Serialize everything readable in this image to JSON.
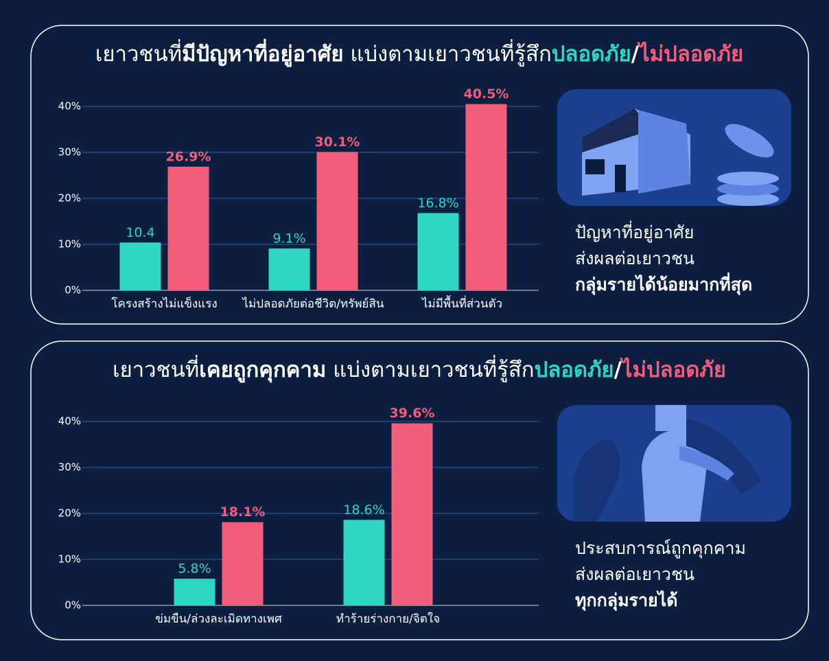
{
  "chart_data": [
    {
      "type": "bar",
      "title_parts": [
        "เยาวชนที่",
        "มีปัญหาที่อยู่อาศัย",
        " แบ่งตามเยาวชนที่รู้สึก",
        "/"
      ],
      "categories": [
        "โครงสร้างไม่แข็งแรง",
        "ไม่ปลอดภัยต่อชีวิต/ทรัพย์สิน",
        "ไม่มีพื้นที่ส่วนตัว"
      ],
      "series": [
        {
          "name": "ปลอดภัย",
          "color": "#2ed6c4",
          "values": [
            10.4,
            9.1,
            16.8
          ],
          "value_labels": [
            "10.4",
            "9.1%",
            "16.8%"
          ]
        },
        {
          "name": "ไม่ปลอดภัย",
          "color": "#f25e7a",
          "values": [
            26.9,
            30.1,
            40.5
          ],
          "value_labels": [
            "26.9%",
            "30.1%",
            "40.5%"
          ]
        }
      ],
      "ylim": [
        0,
        40
      ],
      "yticks": [
        {
          "value": 0,
          "label": "0%"
        },
        {
          "value": 10,
          "label": "10%"
        },
        {
          "value": 20,
          "label": "20%"
        },
        {
          "value": 30,
          "label": "30%"
        },
        {
          "value": 40,
          "label": "40%"
        }
      ],
      "grid": true,
      "caption": [
        "ปัญหาที่อยู่อาศัย",
        "ส่งผลต่อเยาวชน",
        "กลุ่มรายได้น้อยมากที่สุด"
      ]
    },
    {
      "type": "bar",
      "title_parts": [
        "เยาวชนที่",
        "เคยถูกคุกคาม",
        " แบ่งตามเยาวชนที่รู้สึก",
        "/"
      ],
      "categories": [
        "ข่มขืน/ล่วงละเมิดทางเพศ",
        "ทำร้ายร่างกาย/จิตใจ"
      ],
      "series": [
        {
          "name": "ปลอดภัย",
          "color": "#2ed6c4",
          "values": [
            5.8,
            18.6
          ],
          "value_labels": [
            "5.8%",
            "18.6%"
          ]
        },
        {
          "name": "ไม่ปลอดภัย",
          "color": "#f25e7a",
          "values": [
            18.1,
            39.6
          ],
          "value_labels": [
            "18.1%",
            "39.6%"
          ]
        }
      ],
      "ylim": [
        0,
        40
      ],
      "yticks": [
        {
          "value": 0,
          "label": "0%"
        },
        {
          "value": 10,
          "label": "10%"
        },
        {
          "value": 20,
          "label": "20%"
        },
        {
          "value": 30,
          "label": "30%"
        },
        {
          "value": 40,
          "label": "40%"
        }
      ],
      "grid": true,
      "caption": [
        "ประสบการณ์ถูกคุกคาม",
        "ส่งผลต่อเยาวชน",
        "ทุกกลุ่มรายได้"
      ]
    }
  ]
}
